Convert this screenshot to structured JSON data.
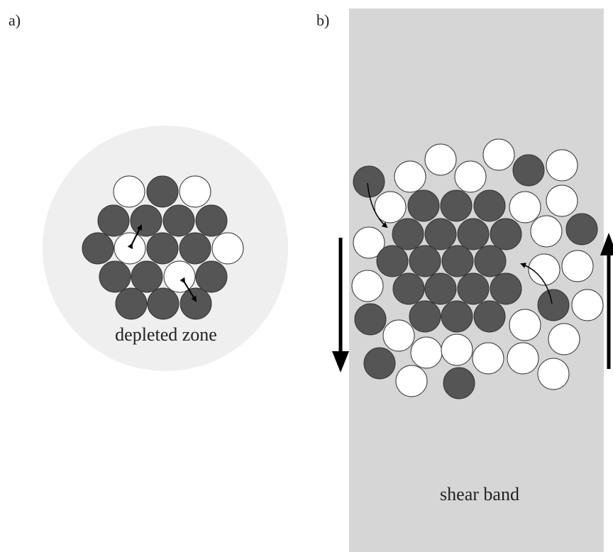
{
  "panel_a": {
    "label": "a)",
    "zone_label": "depleted zone"
  },
  "panel_b": {
    "label": "b)",
    "band_label": "shear band"
  }
}
